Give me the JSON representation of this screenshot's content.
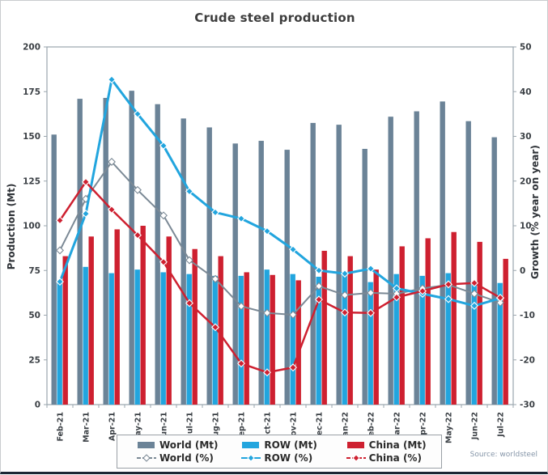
{
  "chart_data": {
    "type": "bar+line",
    "title": "Crude steel production",
    "source_note": "Source: worldsteel",
    "categories": [
      "Feb-21",
      "Mar-21",
      "Apr-21",
      "May-21",
      "Jun-21",
      "Jul-21",
      "Aug-21",
      "Sep-21",
      "Oct-21",
      "Nov-21",
      "Dec-21",
      "Jan-22",
      "Feb-22",
      "Mar-22",
      "Apr-22",
      "May-22",
      "Jun-22",
      "Jul-22"
    ],
    "left_axis": {
      "label": "Production (Mt)",
      "min": 0,
      "max": 200,
      "step": 25
    },
    "right_axis": {
      "label": "Growth (% year on year)",
      "min": -30,
      "max": 50,
      "step": 10
    },
    "grid": false,
    "legend_position": "bottom",
    "bar_series": [
      {
        "name": "World (Mt)",
        "slug": "world-mt",
        "axis": "left",
        "color": "#6b8397",
        "values": [
          151,
          171,
          171.5,
          175.5,
          168,
          160,
          155,
          146,
          147.5,
          142.5,
          157.5,
          156.5,
          143,
          161,
          164,
          169.5,
          158.5,
          149.5
        ]
      },
      {
        "name": "ROW (Mt)",
        "slug": "row-mt",
        "axis": "left",
        "color": "#22a5de",
        "values": [
          68,
          77,
          73.5,
          75.5,
          74,
          73,
          72,
          72,
          75.5,
          73,
          71.5,
          73.5,
          68.5,
          73,
          72,
          73.5,
          68.5,
          68
        ]
      },
      {
        "name": "China (Mt)",
        "slug": "china-mt",
        "axis": "left",
        "color": "#ce2030",
        "values": [
          83,
          94,
          98,
          100,
          94,
          87,
          83,
          74,
          72.5,
          69.5,
          86,
          83,
          75.5,
          88.5,
          93,
          96.5,
          91,
          81.5
        ]
      }
    ],
    "line_series": [
      {
        "name": "World (%)",
        "slug": "world-pct",
        "axis": "right",
        "color": "#7b8995",
        "marker_fill": "#ffffff",
        "marker_stroke": "#7b8995",
        "width": 2,
        "legend_dash": "5,2",
        "values": [
          4.5,
          16,
          24.3,
          18,
          12.3,
          2.3,
          -1.9,
          -8,
          -9.5,
          -9.9,
          -3.5,
          -5.5,
          -5,
          -5.2,
          -4,
          -3.2,
          -5.2,
          -7.2
        ]
      },
      {
        "name": "ROW (%)",
        "slug": "row-pct",
        "axis": "right",
        "color": "#22a5de",
        "marker_fill": "#22a5de",
        "marker_stroke": "#ffffff",
        "width": 3,
        "legend_dash": "",
        "values": [
          -2.5,
          12.7,
          42.7,
          35,
          27.9,
          17.7,
          13,
          11.6,
          8.8,
          4.7,
          0,
          -0.7,
          0.4,
          -4,
          -5.2,
          -6.4,
          -7.9,
          -6.2
        ]
      },
      {
        "name": "China (%)",
        "slug": "china-pct",
        "axis": "right",
        "color": "#ce2030",
        "marker_fill": "#ce2030",
        "marker_stroke": "#ffffff",
        "width": 2.5,
        "legend_dash": "5,2",
        "values": [
          11.2,
          19.8,
          13.6,
          7.9,
          1.9,
          -7.3,
          -12.7,
          -20.8,
          -22.8,
          -21.7,
          -6.5,
          -9.4,
          -9.5,
          -6,
          -4.6,
          -3.1,
          -2.8,
          -6.1
        ]
      }
    ]
  }
}
